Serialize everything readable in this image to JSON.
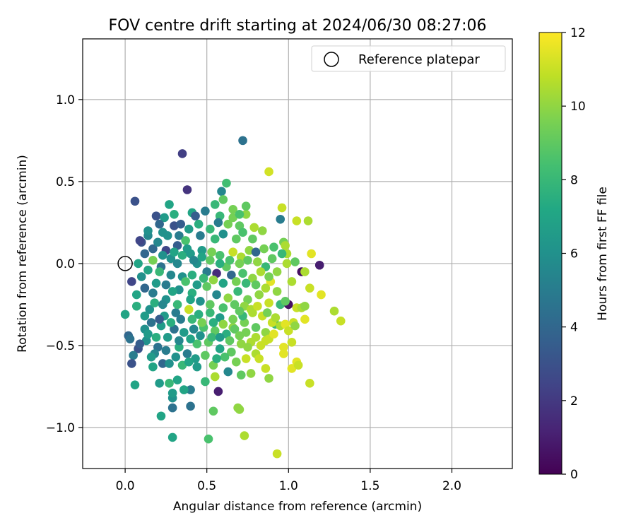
{
  "chart_data": {
    "type": "scatter",
    "title": "FOV centre drift starting at 2024/06/30 08:27:06",
    "xlabel": "Angular distance from reference (arcmin)",
    "ylabel": "Rotation from reference (arcmin)",
    "xlim": [
      -0.26,
      2.37
    ],
    "ylim": [
      -1.25,
      1.37
    ],
    "xticks": [
      0.0,
      0.5,
      1.0,
      1.5,
      2.0
    ],
    "xtick_labels": [
      "0.0",
      "0.5",
      "1.0",
      "1.5",
      "2.0"
    ],
    "yticks": [
      -1.0,
      -0.5,
      0.0,
      0.5,
      1.0
    ],
    "ytick_labels": [
      "−1.0",
      "−0.5",
      "0.0",
      "0.5",
      "1.0"
    ],
    "grid": true,
    "legend": {
      "position": "top-right",
      "label": "Reference platepar"
    },
    "reference_point": {
      "x": 0.0,
      "y": 0.0
    },
    "colorbar": {
      "label": "Hours from first FF file",
      "range": [
        0,
        12
      ],
      "ticks": [
        0,
        2,
        4,
        6,
        8,
        10,
        12
      ],
      "colormap": "viridis"
    },
    "points": [
      [
        0.35,
        0.67,
        2.2
      ],
      [
        0.72,
        0.75,
        4.5
      ],
      [
        0.38,
        0.45,
        1.8
      ],
      [
        0.88,
        0.56,
        11.2
      ],
      [
        0.59,
        0.44,
        5.5
      ],
      [
        0.62,
        0.49,
        8.3
      ],
      [
        0.06,
        0.38,
        3.0
      ],
      [
        0.19,
        0.29,
        3.0
      ],
      [
        0.27,
        0.36,
        7.0
      ],
      [
        0.41,
        0.31,
        7.0
      ],
      [
        0.58,
        0.29,
        8.0
      ],
      [
        0.74,
        0.3,
        10.0
      ],
      [
        0.96,
        0.34,
        11.0
      ],
      [
        0.95,
        0.27,
        5.0
      ],
      [
        1.05,
        0.26,
        11.0
      ],
      [
        1.12,
        0.26,
        10.5
      ],
      [
        0.63,
        0.24,
        9.5
      ],
      [
        0.79,
        0.22,
        10.5
      ],
      [
        0.84,
        0.2,
        10.0
      ],
      [
        0.7,
        0.23,
        9.0
      ],
      [
        0.3,
        0.23,
        3.0
      ],
      [
        0.33,
        0.17,
        5.0
      ],
      [
        0.23,
        0.19,
        6.0
      ],
      [
        0.14,
        0.17,
        5.5
      ],
      [
        0.1,
        0.13,
        3.0
      ],
      [
        0.17,
        0.09,
        4.0
      ],
      [
        0.25,
        0.08,
        2.5
      ],
      [
        0.32,
        0.11,
        3.5
      ],
      [
        0.37,
        0.14,
        8.5
      ],
      [
        0.46,
        0.17,
        5.0
      ],
      [
        0.55,
        0.15,
        8.0
      ],
      [
        0.6,
        0.18,
        6.0
      ],
      [
        0.68,
        0.15,
        9.0
      ],
      [
        0.97,
        0.13,
        9.5
      ],
      [
        0.98,
        0.11,
        10.5
      ],
      [
        0.12,
        0.06,
        4.0
      ],
      [
        0.08,
        0.0,
        7.0
      ],
      [
        0.14,
        -0.04,
        7.0
      ],
      [
        0.17,
        0.02,
        9.5
      ],
      [
        0.22,
        -0.02,
        4.5
      ],
      [
        0.28,
        0.03,
        6.0
      ],
      [
        0.35,
        0.05,
        7.5
      ],
      [
        0.4,
        0.06,
        6.5
      ],
      [
        0.47,
        0.08,
        6.5
      ],
      [
        0.52,
        0.02,
        9.0
      ],
      [
        0.58,
        0.05,
        8.5
      ],
      [
        0.62,
        -0.02,
        9.0
      ],
      [
        0.66,
        0.07,
        11.0
      ],
      [
        0.71,
        0.04,
        10.5
      ],
      [
        0.76,
        0.08,
        10.0
      ],
      [
        0.8,
        0.07,
        4.0
      ],
      [
        0.86,
        -0.02,
        8.0
      ],
      [
        0.9,
        0.03,
        9.0
      ],
      [
        0.93,
        -0.05,
        10.0
      ],
      [
        0.99,
        0.06,
        10.5
      ],
      [
        1.08,
        -0.05,
        0.5
      ],
      [
        1.1,
        -0.05,
        10.5
      ],
      [
        1.14,
        0.06,
        11.5
      ],
      [
        1.19,
        -0.01,
        1.0
      ],
      [
        1.02,
        -0.11,
        10.5
      ],
      [
        1.13,
        -0.15,
        11.0
      ],
      [
        1.2,
        -0.19,
        11.5
      ],
      [
        0.04,
        -0.11,
        2.5
      ],
      [
        0.12,
        -0.15,
        4.0
      ],
      [
        0.19,
        -0.12,
        6.5
      ],
      [
        0.25,
        -0.13,
        5.0
      ],
      [
        0.33,
        -0.16,
        6.0
      ],
      [
        0.41,
        -0.18,
        7.5
      ],
      [
        0.5,
        -0.14,
        9.0
      ],
      [
        0.56,
        -0.19,
        5.5
      ],
      [
        0.63,
        -0.21,
        10.0
      ],
      [
        0.69,
        -0.17,
        8.0
      ],
      [
        0.75,
        -0.22,
        9.5
      ],
      [
        0.82,
        -0.19,
        10.0
      ],
      [
        0.88,
        -0.24,
        11.0
      ],
      [
        0.95,
        -0.25,
        8.0
      ],
      [
        1.0,
        -0.25,
        0.5
      ],
      [
        1.05,
        -0.27,
        11.0
      ],
      [
        1.08,
        -0.27,
        10.5
      ],
      [
        1.1,
        -0.26,
        10.0
      ],
      [
        1.28,
        -0.29,
        10.5
      ],
      [
        1.32,
        -0.35,
        11.0
      ],
      [
        1.1,
        -0.34,
        11.5
      ],
      [
        1.03,
        -0.36,
        11.0
      ],
      [
        0.92,
        -0.37,
        8.0
      ],
      [
        0.86,
        -0.42,
        10.0
      ],
      [
        0.8,
        -0.39,
        9.0
      ],
      [
        0.73,
        -0.36,
        9.5
      ],
      [
        0.66,
        -0.39,
        10.0
      ],
      [
        0.58,
        -0.33,
        6.5
      ],
      [
        0.52,
        -0.3,
        8.0
      ],
      [
        0.45,
        -0.31,
        7.5
      ],
      [
        0.39,
        -0.28,
        11.0
      ],
      [
        0.31,
        -0.3,
        5.0
      ],
      [
        0.24,
        -0.32,
        6.5
      ],
      [
        0.15,
        -0.28,
        6.0
      ],
      [
        0.07,
        -0.26,
        7.5
      ],
      [
        0.0,
        -0.31,
        7.0
      ],
      [
        0.02,
        -0.44,
        4.0
      ],
      [
        0.08,
        -0.52,
        3.0
      ],
      [
        0.05,
        -0.56,
        5.0
      ],
      [
        0.04,
        -0.61,
        3.0
      ],
      [
        0.13,
        -0.47,
        6.0
      ],
      [
        0.2,
        -0.51,
        4.5
      ],
      [
        0.26,
        -0.45,
        6.5
      ],
      [
        0.33,
        -0.51,
        7.5
      ],
      [
        0.38,
        -0.55,
        5.0
      ],
      [
        0.44,
        -0.49,
        8.5
      ],
      [
        0.51,
        -0.48,
        9.0
      ],
      [
        0.58,
        -0.52,
        7.0
      ],
      [
        0.65,
        -0.54,
        9.0
      ],
      [
        0.71,
        -0.49,
        10.0
      ],
      [
        0.77,
        -0.48,
        10.5
      ],
      [
        0.83,
        -0.5,
        11.0
      ],
      [
        0.88,
        -0.46,
        11.0
      ],
      [
        0.97,
        -0.51,
        11.5
      ],
      [
        1.02,
        -0.48,
        11.0
      ],
      [
        1.05,
        -0.6,
        11.5
      ],
      [
        1.02,
        -0.64,
        11.5
      ],
      [
        1.13,
        -0.73,
        11.0
      ],
      [
        0.93,
        -1.16,
        11.0
      ],
      [
        0.73,
        -1.05,
        10.5
      ],
      [
        0.51,
        -1.07,
        8.5
      ],
      [
        0.29,
        -1.06,
        7.0
      ],
      [
        0.22,
        -0.93,
        7.0
      ],
      [
        0.29,
        -0.88,
        4.5
      ],
      [
        0.4,
        -0.87,
        4.5
      ],
      [
        0.54,
        -0.9,
        9.0
      ],
      [
        0.69,
        -0.88,
        10.0
      ],
      [
        0.7,
        -0.89,
        10.0
      ],
      [
        0.57,
        -0.78,
        1.0
      ],
      [
        0.4,
        -0.77,
        5.0
      ],
      [
        0.36,
        -0.77,
        7.0
      ],
      [
        0.29,
        -0.82,
        6.0
      ],
      [
        0.29,
        -0.79,
        6.5
      ],
      [
        0.21,
        -0.73,
        6.5
      ],
      [
        0.06,
        -0.74,
        7.0
      ],
      [
        0.17,
        -0.63,
        7.0
      ],
      [
        0.23,
        -0.61,
        4.0
      ],
      [
        0.27,
        -0.61,
        6.0
      ],
      [
        0.35,
        -0.62,
        8.0
      ],
      [
        0.44,
        -0.63,
        6.5
      ],
      [
        0.54,
        -0.62,
        9.5
      ],
      [
        0.63,
        -0.66,
        5.5
      ],
      [
        0.71,
        -0.68,
        9.0
      ],
      [
        0.77,
        -0.67,
        10.0
      ],
      [
        0.86,
        -0.64,
        11.0
      ],
      [
        0.88,
        -0.7,
        10.0
      ],
      [
        0.55,
        -0.69,
        10.5
      ],
      [
        0.49,
        -0.72,
        8.0
      ],
      [
        0.32,
        -0.71,
        7.0
      ],
      [
        0.27,
        -0.73,
        8.0
      ],
      [
        0.18,
        -0.55,
        5.5
      ],
      [
        0.12,
        -0.4,
        6.0
      ],
      [
        0.16,
        -0.36,
        4.5
      ],
      [
        0.22,
        -0.38,
        6.5
      ],
      [
        0.3,
        -0.4,
        4.5
      ],
      [
        0.36,
        -0.42,
        6.5
      ],
      [
        0.42,
        -0.4,
        5.5
      ],
      [
        0.48,
        -0.39,
        8.5
      ],
      [
        0.55,
        -0.41,
        9.0
      ],
      [
        0.62,
        -0.43,
        7.5
      ],
      [
        0.67,
        -0.4,
        9.0
      ],
      [
        0.74,
        -0.42,
        9.5
      ],
      [
        0.8,
        -0.45,
        10.5
      ],
      [
        0.9,
        -0.36,
        11.0
      ],
      [
        0.95,
        -0.38,
        10.5
      ],
      [
        0.18,
        -0.24,
        7.5
      ],
      [
        0.25,
        -0.22,
        6.0
      ],
      [
        0.32,
        -0.25,
        8.0
      ],
      [
        0.4,
        -0.22,
        7.0
      ],
      [
        0.46,
        -0.23,
        6.0
      ],
      [
        0.52,
        -0.25,
        9.0
      ],
      [
        0.6,
        -0.27,
        8.5
      ],
      [
        0.67,
        -0.25,
        9.0
      ],
      [
        0.73,
        -0.26,
        10.0
      ],
      [
        0.78,
        -0.3,
        10.5
      ],
      [
        0.84,
        -0.32,
        11.0
      ],
      [
        0.72,
        -0.32,
        8.0
      ],
      [
        0.32,
        0.0,
        5.5
      ],
      [
        0.44,
        0.0,
        6.0
      ],
      [
        0.5,
        -0.05,
        5.0
      ],
      [
        0.56,
        -0.06,
        1.5
      ],
      [
        0.65,
        -0.07,
        4.0
      ],
      [
        0.72,
        -0.06,
        8.5
      ],
      [
        0.78,
        -0.09,
        10.0
      ],
      [
        0.83,
        -0.05,
        10.5
      ],
      [
        0.89,
        -0.11,
        11.5
      ],
      [
        0.86,
        -0.15,
        10.5
      ],
      [
        0.8,
        -0.13,
        9.0
      ],
      [
        0.74,
        -0.12,
        8.0
      ],
      [
        0.68,
        -0.11,
        9.5
      ],
      [
        0.6,
        -0.12,
        7.0
      ],
      [
        0.54,
        -0.1,
        10.0
      ],
      [
        0.48,
        -0.09,
        8.0
      ],
      [
        0.41,
        -0.07,
        7.5
      ],
      [
        0.35,
        -0.08,
        6.0
      ],
      [
        0.28,
        -0.07,
        5.5
      ],
      [
        0.21,
        -0.05,
        8.0
      ],
      [
        0.17,
        -0.18,
        5.0
      ],
      [
        0.23,
        -0.25,
        5.5
      ],
      [
        0.29,
        -0.17,
        7.0
      ],
      [
        0.37,
        -0.11,
        8.5
      ],
      [
        0.44,
        -0.13,
        6.5
      ],
      [
        0.1,
        -0.08,
        6.0
      ],
      [
        0.07,
        -0.19,
        7.0
      ],
      [
        0.12,
        -0.32,
        6.5
      ],
      [
        0.21,
        -0.34,
        3.5
      ],
      [
        0.28,
        -0.36,
        7.5
      ],
      [
        0.34,
        -0.34,
        5.0
      ],
      [
        0.41,
        -0.34,
        8.0
      ],
      [
        0.47,
        -0.36,
        9.5
      ],
      [
        0.54,
        -0.36,
        7.5
      ],
      [
        0.6,
        -0.37,
        10.0
      ],
      [
        0.66,
        -0.34,
        9.5
      ],
      [
        0.7,
        -0.29,
        9.0
      ],
      [
        0.77,
        -0.28,
        10.5
      ],
      [
        0.81,
        -0.26,
        11.0
      ],
      [
        0.87,
        -0.3,
        9.5
      ],
      [
        0.92,
        -0.33,
        10.5
      ],
      [
        0.98,
        -0.37,
        11.5
      ],
      [
        1.0,
        -0.41,
        11.0
      ],
      [
        0.91,
        -0.43,
        11.5
      ],
      [
        0.86,
        -0.47,
        11.0
      ],
      [
        0.8,
        -0.55,
        10.5
      ],
      [
        0.74,
        -0.58,
        11.0
      ],
      [
        0.68,
        -0.6,
        9.5
      ],
      [
        0.61,
        -0.57,
        8.5
      ],
      [
        0.56,
        -0.58,
        7.5
      ],
      [
        0.49,
        -0.56,
        9.0
      ],
      [
        0.43,
        -0.58,
        6.5
      ],
      [
        0.39,
        -0.6,
        7.0
      ],
      [
        0.31,
        -0.57,
        6.0
      ],
      [
        0.25,
        -0.53,
        5.0
      ],
      [
        0.19,
        -0.45,
        7.5
      ],
      [
        0.14,
        -0.43,
        6.5
      ],
      [
        0.09,
        -0.49,
        3.5
      ],
      [
        0.03,
        -0.46,
        4.5
      ],
      [
        0.16,
        -0.57,
        6.5
      ],
      [
        0.33,
        -0.47,
        5.5
      ],
      [
        0.4,
        -0.46,
        7.0
      ],
      [
        0.46,
        -0.44,
        6.0
      ],
      [
        0.53,
        -0.45,
        8.0
      ],
      [
        0.58,
        -0.45,
        6.5
      ],
      [
        0.64,
        -0.47,
        9.0
      ],
      [
        0.7,
        -0.44,
        9.5
      ],
      [
        0.75,
        -0.51,
        10.0
      ],
      [
        0.82,
        -0.58,
        11.0
      ],
      [
        0.97,
        -0.55,
        11.5
      ],
      [
        1.06,
        -0.62,
        11.0
      ],
      [
        1.04,
        -0.38,
        10.0
      ],
      [
        0.98,
        -0.23,
        9.0
      ],
      [
        0.93,
        -0.17,
        10.0
      ],
      [
        0.88,
        -0.08,
        9.5
      ],
      [
        0.81,
        0.01,
        10.0
      ],
      [
        0.75,
        0.02,
        9.0
      ],
      [
        0.7,
        0.0,
        9.5
      ],
      [
        0.64,
        0.02,
        8.5
      ],
      [
        0.58,
        0.0,
        7.5
      ],
      [
        0.53,
        0.07,
        9.5
      ],
      [
        0.47,
        0.04,
        7.0
      ],
      [
        0.42,
        0.02,
        5.5
      ],
      [
        0.38,
        0.09,
        6.5
      ],
      [
        0.3,
        0.07,
        7.0
      ],
      [
        0.23,
        0.05,
        6.0
      ],
      [
        0.2,
        0.13,
        5.5
      ],
      [
        0.26,
        0.17,
        6.0
      ],
      [
        0.34,
        0.24,
        3.5
      ],
      [
        0.39,
        0.21,
        6.5
      ],
      [
        0.45,
        0.24,
        7.5
      ],
      [
        0.52,
        0.21,
        8.0
      ],
      [
        0.57,
        0.25,
        5.0
      ],
      [
        0.66,
        0.28,
        9.5
      ],
      [
        0.72,
        0.19,
        8.5
      ],
      [
        0.78,
        0.15,
        9.0
      ],
      [
        0.85,
        0.09,
        9.5
      ],
      [
        0.91,
        0.1,
        8.5
      ],
      [
        0.96,
        0.06,
        8.0
      ],
      [
        0.99,
        0.0,
        10.5
      ],
      [
        1.04,
        0.01,
        9.0
      ],
      [
        0.24,
        0.28,
        6.5
      ],
      [
        0.21,
        0.24,
        4.0
      ],
      [
        0.14,
        0.2,
        6.0
      ],
      [
        0.09,
        0.14,
        2.5
      ],
      [
        0.3,
        0.3,
        7.5
      ],
      [
        0.43,
        0.29,
        3.5
      ],
      [
        0.49,
        0.32,
        5.0
      ],
      [
        0.55,
        0.36,
        8.0
      ],
      [
        0.6,
        0.39,
        9.0
      ],
      [
        0.66,
        0.33,
        9.5
      ],
      [
        0.7,
        0.3,
        8.5
      ],
      [
        0.74,
        0.35,
        9.0
      ]
    ]
  }
}
